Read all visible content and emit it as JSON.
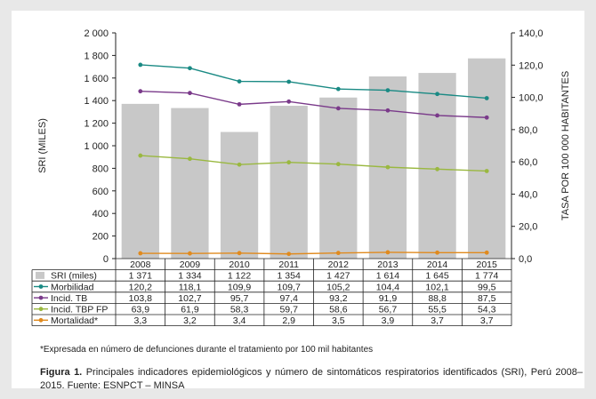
{
  "chart_data": {
    "type": "bar",
    "categories": [
      "2008",
      "2009",
      "2010",
      "2011",
      "2012",
      "2013",
      "2014",
      "2015"
    ],
    "bar_series": {
      "name": "SRI (miles)",
      "values": [
        1371,
        1334,
        1122,
        1354,
        1427,
        1614,
        1645,
        1774
      ],
      "color": "#c8c8c8"
    },
    "line_series": [
      {
        "name": "Morbilidad",
        "values": [
          120.2,
          118.1,
          109.9,
          109.7,
          105.2,
          104.4,
          102.1,
          99.5
        ],
        "color": "#1a8a84"
      },
      {
        "name": "Incid. TB",
        "values": [
          103.8,
          102.7,
          95.7,
          97.4,
          93.2,
          91.9,
          88.8,
          87.5
        ],
        "color": "#7a3a8a"
      },
      {
        "name": "Incid. TBP FP",
        "values": [
          63.9,
          61.9,
          58.3,
          59.7,
          58.6,
          56.7,
          55.5,
          54.3
        ],
        "color": "#9ab840"
      },
      {
        "name": "Mortalidad*",
        "values": [
          3.3,
          3.2,
          3.4,
          2.9,
          3.5,
          3.9,
          3.7,
          3.7
        ],
        "color": "#e08a1e"
      }
    ],
    "table_values": {
      "SRI (miles)": [
        "1 371",
        "1 334",
        "1 122",
        "1 354",
        "1 427",
        "1 614",
        "1 645",
        "1 774"
      ],
      "Morbilidad": [
        "120,2",
        "118,1",
        "109,9",
        "109,7",
        "105,2",
        "104,4",
        "102,1",
        "99,5"
      ],
      "Incid. TB": [
        "103,8",
        "102,7",
        "95,7",
        "97,4",
        "93,2",
        "91,9",
        "88,8",
        "87,5"
      ],
      "Incid. TBP FP": [
        "63,9",
        "61,9",
        "58,3",
        "59,7",
        "58,6",
        "56,7",
        "55,5",
        "54,3"
      ],
      "Mortalidad*": [
        "3,3",
        "3,2",
        "3,4",
        "2,9",
        "3,5",
        "3,9",
        "3,7",
        "3,7"
      ]
    },
    "ylabel_left": "SRI (MILES)",
    "ylabel_right": "TASA POR 100 000 HABITANTES",
    "ylim_left": [
      0,
      2000
    ],
    "ylim_right": [
      0,
      140
    ],
    "yticks_left": [
      "0",
      "200",
      "400",
      "600",
      "800",
      "1 000",
      "1 200",
      "1 400",
      "1 600",
      "1 800",
      "2 000"
    ],
    "yticks_right": [
      "0,0",
      "20,0",
      "40,0",
      "60,0",
      "80,0",
      "100,0",
      "120,0",
      "140,0"
    ],
    "grid": false
  },
  "footnote": "*Expresada en número de defunciones durante el tratamiento por 100 mil habitantes",
  "caption_bold": "Figura 1.",
  "caption_text": " Principales indicadores epidemiológicos y número de sintomáticos respiratorios identificados (SRI), Perú 2008– 2015. Fuente: ESNPCT – MINSA"
}
